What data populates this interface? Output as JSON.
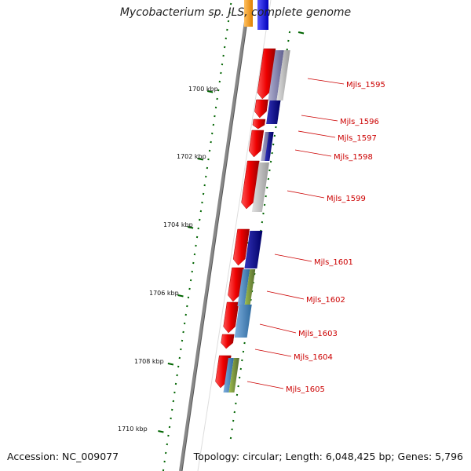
{
  "title": "Mycobacterium sp. JLS, complete genome",
  "footer": {
    "accession": "Accession: NC_009077",
    "summary": "Topology: circular; Length: 6,048,425 bp; Genes: 5,796"
  },
  "axis": {
    "ticks": [
      "1700 kbp",
      "1702 kbp",
      "1704 kbp",
      "1706 kbp",
      "1708 kbp",
      "1710 kbp"
    ]
  },
  "genes": [
    {
      "label": "Mjls_1595",
      "cog_color": "#8888aa"
    },
    {
      "label": "Mjls_1596",
      "cog_color": "#00008b"
    },
    {
      "label": "Mjls_1597",
      "cog_color": ""
    },
    {
      "label": "Mjls_1598",
      "cog_color": "#00008b"
    },
    {
      "label": "Mjls_1599",
      "cog_color": "#b8b8b8"
    },
    {
      "label": "Mjls_1601",
      "cog_color": "#00008b"
    },
    {
      "label": "Mjls_1602",
      "cog_color": "#4682b4"
    },
    {
      "label": "Mjls_1603",
      "cog_color": "#4682b4"
    },
    {
      "label": "Mjls_1604",
      "cog_color": ""
    },
    {
      "label": "Mjls_1605",
      "cog_color": "#4682b4"
    }
  ],
  "colors": {
    "cds": "#ee0000",
    "backbone": "#888888",
    "tick": "#006400",
    "label": "#cc0000",
    "green_cog": "#6b8e23",
    "orange_cog": "#ff9900",
    "blue_cog": "#0000ee"
  }
}
